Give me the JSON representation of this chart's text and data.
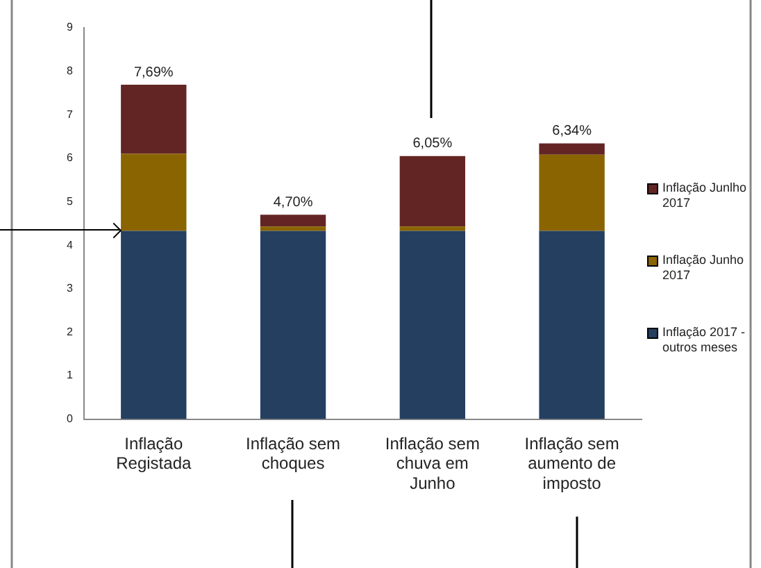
{
  "chart_data": {
    "type": "bar",
    "stacked": true,
    "categories": [
      "Inflação Registada",
      "Inflação sem choques",
      "Inflação sem chuva em Junho",
      "Inflação sem aumento de imposto"
    ],
    "series": [
      {
        "name": "Inflação 2017 - outros meses",
        "color": "#243f60",
        "values": [
          4.33,
          4.33,
          4.33,
          4.33
        ]
      },
      {
        "name": "Inflação Junho 2017",
        "color": "#8a6400",
        "values": [
          1.77,
          0.1,
          0.1,
          1.75
        ]
      },
      {
        "name": "Inflação Junlho 2017",
        "color": "#632523",
        "values": [
          1.59,
          0.27,
          1.62,
          0.26
        ]
      }
    ],
    "totals": [
      "7,69%",
      "4,70%",
      "6,05%",
      "6,34%"
    ],
    "ylim": [
      0,
      9
    ],
    "yticks": [
      0,
      1,
      2,
      3,
      4,
      5,
      6,
      7,
      8,
      9
    ],
    "grid": false,
    "legend": "right"
  }
}
